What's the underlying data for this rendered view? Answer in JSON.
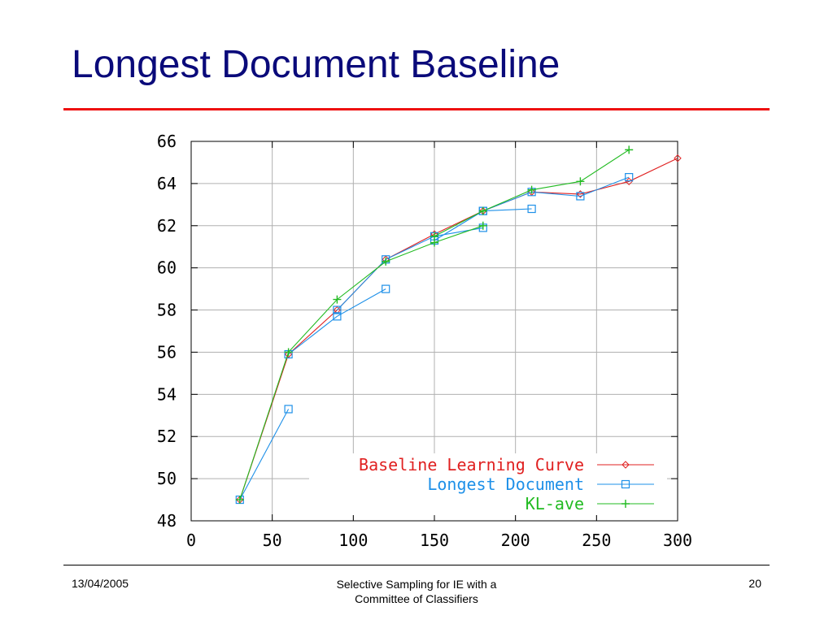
{
  "slide": {
    "title": "Longest Document Baseline"
  },
  "footer": {
    "date": "13/04/2005",
    "center_line1": "Selective Sampling for IE with a",
    "center_line2": "Committee of Classifiers",
    "page": "20"
  },
  "colors": {
    "title": "#0a0a7a",
    "rule": "#ee1111",
    "grid": "#b0b0b0"
  },
  "chart_data": {
    "type": "line",
    "title": "",
    "xlabel": "",
    "ylabel": "",
    "xlim": [
      0,
      300
    ],
    "ylim": [
      48,
      66
    ],
    "xticks": [
      "0",
      "50",
      "100",
      "150",
      "200",
      "250",
      "300"
    ],
    "yticks": [
      "48",
      "50",
      "52",
      "54",
      "56",
      "58",
      "60",
      "62",
      "64",
      "66"
    ],
    "grid": true,
    "legend_position": "bottom-right",
    "series": [
      {
        "name": "Baseline Learning Curve",
        "color": "#e02020",
        "marker": "diamond",
        "points": [
          [
            30,
            49.0
          ],
          [
            60,
            55.9
          ],
          [
            90,
            58.0
          ],
          [
            120,
            60.4
          ],
          [
            150,
            61.6
          ],
          [
            180,
            62.7
          ],
          [
            210,
            63.6
          ],
          [
            240,
            63.5
          ],
          [
            270,
            64.1
          ],
          [
            300,
            65.2
          ]
        ]
      },
      {
        "name": "Longest Document",
        "color": "#1e90e8",
        "marker": "square",
        "points": [
          [
            30,
            49.0
          ],
          [
            60,
            53.3
          ],
          null,
          [
            60,
            55.9
          ],
          [
            90,
            57.7
          ],
          [
            120,
            59.0
          ],
          null,
          [
            90,
            58.0
          ],
          [
            120,
            60.4
          ],
          [
            150,
            61.5
          ],
          [
            180,
            61.9
          ],
          null,
          [
            150,
            61.3
          ],
          [
            180,
            62.7
          ],
          [
            210,
            62.8
          ],
          null,
          [
            180,
            62.7
          ],
          [
            210,
            63.6
          ],
          [
            240,
            63.4
          ],
          [
            270,
            64.3
          ]
        ]
      },
      {
        "name": "KL-ave",
        "color": "#22bb22",
        "marker": "plus",
        "points": [
          [
            30,
            49.0
          ],
          [
            60,
            56.0
          ],
          [
            90,
            58.5
          ],
          [
            120,
            60.3
          ],
          [
            150,
            61.2
          ],
          [
            180,
            62.0
          ],
          null,
          [
            150,
            61.5
          ],
          [
            180,
            62.7
          ],
          [
            210,
            63.7
          ],
          [
            240,
            64.1
          ],
          [
            270,
            65.6
          ]
        ]
      }
    ]
  }
}
